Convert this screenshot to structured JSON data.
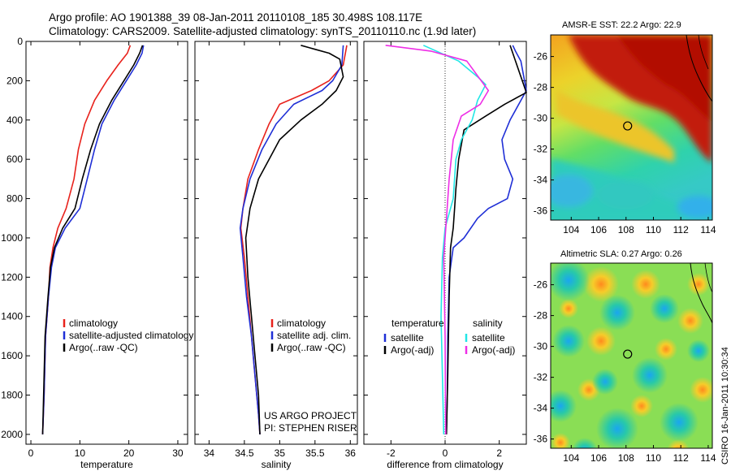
{
  "header": {
    "line1": "Argo profile: AO 1901388_39 08-Jan-2011 20110108_185 30.498S 108.117E",
    "line2": "Climatology: CARS2009. Satellite-adjusted climatology: synTS_20110110.nc (1.9d later)"
  },
  "side_label": "CSIRO 16-Jan-2011 10:30:34",
  "colors": {
    "climatology": "#e8221c",
    "satellite": "#1f2fd6",
    "argo": "#000000",
    "sat_salinity": "#22e6e6",
    "argo_salinity_adj": "#ee2ee6"
  },
  "chart_data": [
    {
      "type": "line",
      "xlabel": "temperature",
      "ylabel": "",
      "xlim": [
        -1,
        32
      ],
      "ylim": [
        2050,
        0
      ],
      "y_inverted": true,
      "xticks": [
        "0",
        "10",
        "20",
        "30"
      ],
      "xtick_values": [
        0,
        10,
        20,
        30
      ],
      "yticks": [
        "0",
        "200",
        "400",
        "600",
        "800",
        "1000",
        "1200",
        "1400",
        "1600",
        "1800",
        "2000"
      ],
      "ytick_values": [
        0,
        200,
        400,
        600,
        800,
        1000,
        1200,
        1400,
        1600,
        1800,
        2000
      ],
      "legend": [
        "climatology",
        "satellite-adjusted climatology",
        "Argo(..raw -QC)"
      ],
      "series": [
        {
          "name": "climatology",
          "color": "climatology",
          "x": [
            20.3,
            19.7,
            17.8,
            15.5,
            13.0,
            11.0,
            9.7,
            8.8,
            7.2,
            5.5,
            4.5,
            3.9,
            3.6,
            3.0,
            2.7,
            2.4
          ],
          "y": [
            20,
            60,
            120,
            200,
            300,
            420,
            550,
            700,
            850,
            950,
            1050,
            1150,
            1300,
            1500,
            1800,
            2000
          ]
        },
        {
          "name": "satellite-adjusted climatology",
          "color": "satellite",
          "x": [
            23.0,
            22.7,
            21.5,
            19.5,
            17.0,
            14.5,
            13.0,
            11.5,
            10.0,
            7.0,
            5.0,
            4.2,
            3.6,
            3.0,
            2.7,
            2.4
          ],
          "y": [
            20,
            60,
            120,
            200,
            300,
            420,
            550,
            700,
            850,
            950,
            1050,
            1150,
            1300,
            1500,
            1800,
            2000
          ]
        },
        {
          "name": "Argo(..raw -QC)",
          "color": "argo",
          "x": [
            22.8,
            22.2,
            21.0,
            19.0,
            16.5,
            14.0,
            12.2,
            10.5,
            9.0,
            6.5,
            4.8,
            4.0,
            3.5,
            2.9,
            2.6,
            2.4
          ],
          "y": [
            20,
            60,
            120,
            200,
            300,
            420,
            550,
            700,
            850,
            950,
            1050,
            1150,
            1300,
            1500,
            1800,
            2000
          ]
        }
      ]
    },
    {
      "type": "line",
      "xlabel": "salinity",
      "ylabel": "",
      "xlim": [
        33.8,
        36.1
      ],
      "ylim": [
        2050,
        0
      ],
      "y_inverted": true,
      "xticks": [
        "34",
        "34.5",
        "35",
        "35.5",
        "36"
      ],
      "xtick_values": [
        34,
        34.5,
        35,
        35.5,
        36
      ],
      "legend": [
        "climatology",
        "satellite adj. clim.",
        "Argo(..raw -QC)"
      ],
      "annotations": [
        "US ARGO PROJECT",
        "PI: STEPHEN RISER"
      ],
      "series": [
        {
          "name": "climatology",
          "color": "climatology",
          "x": [
            35.95,
            35.9,
            35.7,
            35.45,
            35.0,
            34.85,
            34.7,
            34.55,
            34.48,
            34.45,
            34.5,
            34.55,
            34.6,
            34.65,
            34.7,
            34.72
          ],
          "y": [
            20,
            120,
            200,
            250,
            320,
            420,
            550,
            700,
            850,
            950,
            1100,
            1300,
            1500,
            1700,
            1900,
            2000
          ]
        },
        {
          "name": "satellite adj. clim.",
          "color": "satellite",
          "x": [
            35.9,
            35.88,
            35.75,
            35.6,
            35.2,
            34.95,
            34.75,
            34.58,
            34.48,
            34.44,
            34.48,
            34.53,
            34.6,
            34.65,
            34.7,
            34.72
          ],
          "y": [
            20,
            120,
            200,
            250,
            320,
            420,
            550,
            700,
            850,
            950,
            1100,
            1300,
            1500,
            1700,
            1900,
            2000
          ]
        },
        {
          "name": "Argo(..raw -QC)",
          "color": "argo",
          "x": [
            35.3,
            35.5,
            35.7,
            35.85,
            35.9,
            35.8,
            35.6,
            35.3,
            35.0,
            34.85,
            34.7,
            34.58,
            34.52,
            34.55,
            34.6,
            34.65,
            34.7,
            34.72
          ],
          "y": [
            20,
            40,
            60,
            90,
            180,
            250,
            320,
            400,
            500,
            600,
            700,
            850,
            1000,
            1200,
            1400,
            1600,
            1800,
            2000
          ]
        }
      ]
    },
    {
      "type": "line",
      "xlabel": "difference from climatology",
      "ylabel": "",
      "xlim": [
        -3,
        3
      ],
      "ylim": [
        2050,
        0
      ],
      "y_inverted": true,
      "xticks": [
        "-2",
        "0",
        "2"
      ],
      "xtick_values": [
        -2,
        0,
        2
      ],
      "legend_left_title": "temperature",
      "legend_right_title": "salinity",
      "legend": [
        "satellite",
        "Argo(-adj)",
        "satellite",
        "Argo(-adj)"
      ],
      "series": [
        {
          "name": "satellite",
          "color": "satellite",
          "x": [
            2.5,
            2.6,
            2.8,
            3.0,
            2.4,
            2.1,
            2.2,
            2.5,
            2.3,
            1.6,
            1.2,
            0.7,
            0.3,
            0.15,
            0.1,
            0.08,
            0.05
          ],
          "y": [
            20,
            50,
            100,
            250,
            400,
            500,
            600,
            700,
            800,
            850,
            900,
            1000,
            1050,
            1200,
            1500,
            1800,
            2000
          ]
        },
        {
          "name": "Argo(-adj)",
          "color": "argo",
          "x": [
            2.4,
            3.0,
            2.2,
            1.5,
            0.7,
            0.5,
            0.4,
            0.35,
            0.3,
            0.2,
            0.15,
            0.1,
            0.05
          ],
          "y": [
            20,
            260,
            320,
            380,
            450,
            600,
            750,
            850,
            950,
            1050,
            1300,
            1700,
            2000
          ]
        },
        {
          "name": "satellite",
          "color": "sat_salinity",
          "x": [
            -0.8,
            0.5,
            1.2,
            1.5,
            1.2,
            1.0,
            0.6,
            0.4,
            0.3,
            0.0,
            -0.1,
            -0.15,
            -0.1,
            -0.05
          ],
          "y": [
            20,
            100,
            180,
            220,
            300,
            400,
            500,
            600,
            800,
            950,
            1100,
            1400,
            1700,
            2000
          ]
        },
        {
          "name": "Argo(-adj)",
          "color": "argo_salinity_adj",
          "x": [
            -2.2,
            -0.5,
            0.8,
            1.6,
            1.3,
            0.6,
            0.3,
            0.15,
            0.05,
            -0.05,
            0.0,
            0.02
          ],
          "y": [
            20,
            50,
            100,
            250,
            320,
            380,
            500,
            700,
            900,
            1100,
            1500,
            2000
          ]
        }
      ]
    }
  ],
  "maps": [
    {
      "title": "AMSR-E SST: 22.2 Argo: 22.9",
      "xticks": [
        "104",
        "106",
        "108",
        "110",
        "112",
        "114"
      ],
      "xtick_values": [
        104,
        106,
        108,
        110,
        112,
        114
      ],
      "yticks": [
        "-26",
        "-28",
        "-30",
        "-32",
        "-34",
        "-36"
      ],
      "ytick_values": [
        -26,
        -28,
        -30,
        -32,
        -34,
        -36
      ],
      "xlim": [
        102.5,
        114.3
      ],
      "ylim": [
        -36.6,
        -24.6
      ],
      "marker": {
        "lon": 108.117,
        "lat": -30.498
      }
    },
    {
      "title": "Altimetric SLA: 0.27 Argo: 0.26",
      "xticks": [
        "104",
        "106",
        "108",
        "110",
        "112",
        "114"
      ],
      "xtick_values": [
        104,
        106,
        108,
        110,
        112,
        114
      ],
      "yticks": [
        "-26",
        "-28",
        "-30",
        "-32",
        "-34",
        "-36"
      ],
      "ytick_values": [
        -26,
        -28,
        -30,
        -32,
        -34,
        -36
      ],
      "xlim": [
        102.5,
        114.3
      ],
      "ylim": [
        -36.6,
        -24.6
      ],
      "marker": {
        "lon": 108.117,
        "lat": -30.498
      }
    }
  ]
}
